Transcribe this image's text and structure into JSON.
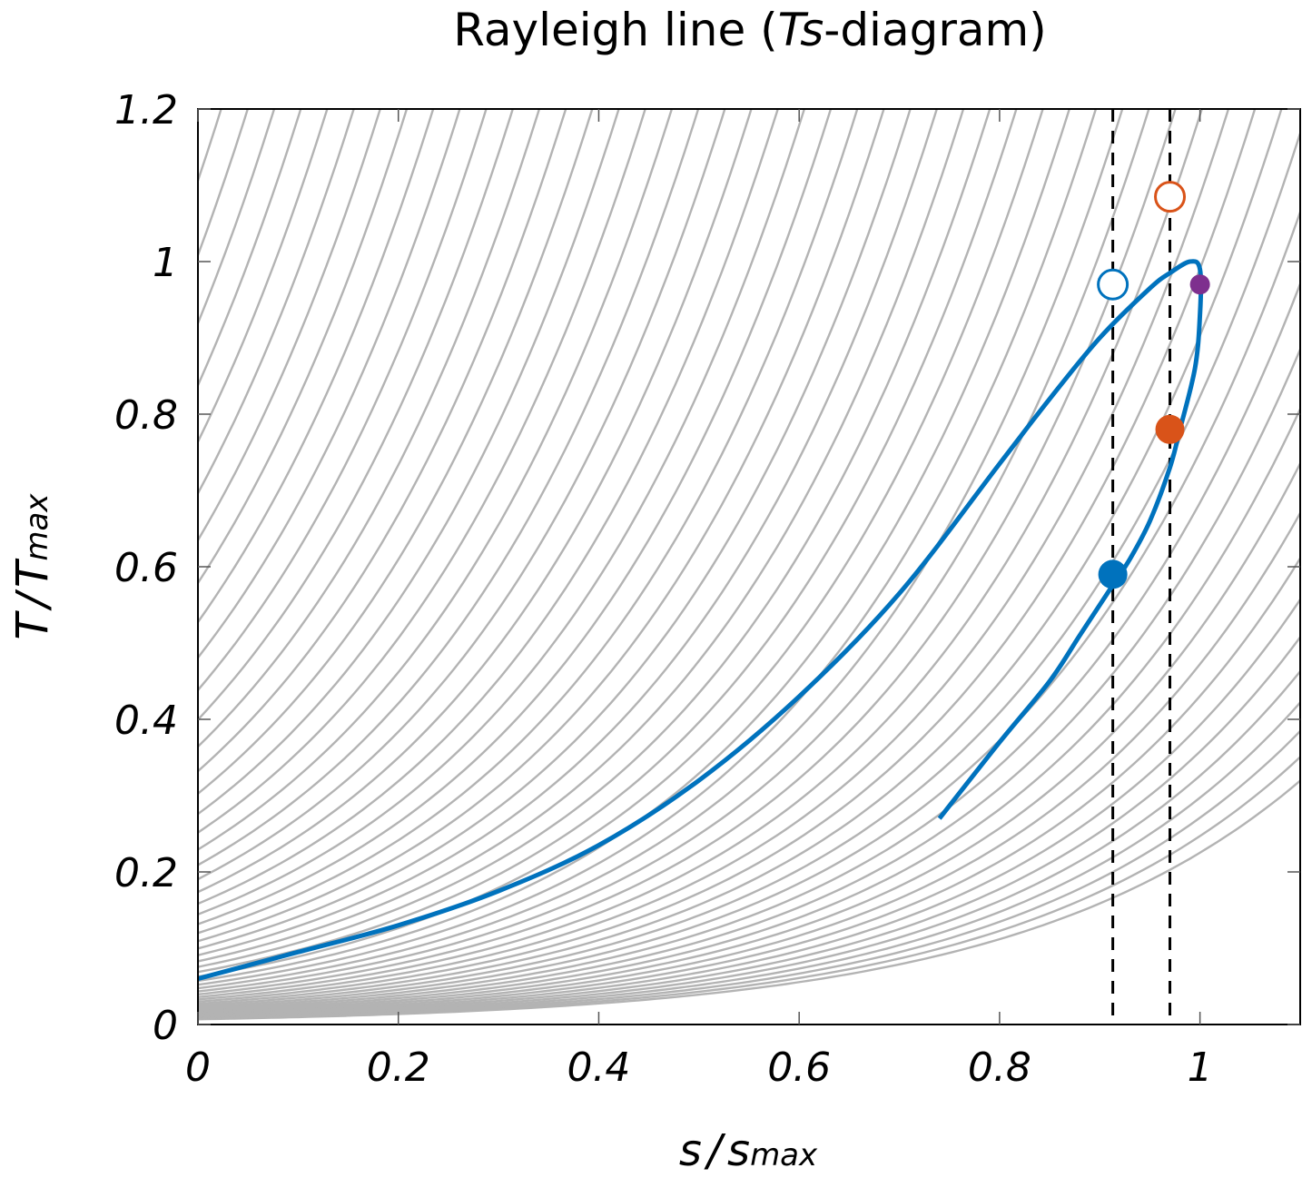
{
  "chart_data": {
    "type": "line",
    "title": {
      "prefix": "Rayleigh line (",
      "italic": "Ts",
      "suffix": "-diagram)"
    },
    "xlabel": {
      "main": "s",
      "sep": "/",
      "main2": "s",
      "sub": "max"
    },
    "ylabel": {
      "main": "T",
      "sep": "/",
      "main2": "T",
      "sub": "max"
    },
    "xlim": [
      0,
      1.1
    ],
    "ylim": [
      0,
      1.2
    ],
    "xticks": [
      0,
      0.2,
      0.4,
      0.6,
      0.8,
      1
    ],
    "xtick_labels": [
      "0",
      "0.2",
      "0.4",
      "0.6",
      "0.8",
      "1"
    ],
    "yticks": [
      0,
      0.2,
      0.4,
      0.6,
      0.8,
      1,
      1.2
    ],
    "ytick_labels": [
      "0",
      "0.2",
      "0.4",
      "0.6",
      "0.8",
      "1",
      "1.2"
    ],
    "grid": false,
    "legend": "none",
    "colors": {
      "rayleigh": "#0072bd",
      "isobars": "#b3b3b3",
      "point_blue": "#0072bd",
      "point_orange": "#d95319",
      "point_purple": "#7e2f8e",
      "dashed": "#000000"
    },
    "isobars": {
      "family": "exponential",
      "description_note": "",
      "count": 95,
      "c_scale": 0.0068,
      "c_growth": 1.097,
      "k": 3.5
    },
    "rayleigh_line": {
      "x": [
        0,
        0.1,
        0.2,
        0.3,
        0.4,
        0.5,
        0.6,
        0.7,
        0.8,
        0.85,
        0.9,
        0.95,
        0.97,
        0.99,
        1.0,
        1.0,
        0.995,
        0.98,
        0.97,
        0.95,
        0.93,
        0.91,
        0.88,
        0.85,
        0.8,
        0.74
      ],
      "y": [
        0.06,
        0.095,
        0.13,
        0.175,
        0.235,
        0.32,
        0.43,
        0.565,
        0.735,
        0.82,
        0.9,
        0.965,
        0.985,
        1.0,
        0.99,
        0.93,
        0.86,
        0.78,
        0.73,
        0.66,
        0.61,
        0.57,
        0.51,
        0.45,
        0.37,
        0.27
      ]
    },
    "vertical_lines": [
      {
        "x": 0.913,
        "style": "dashed"
      },
      {
        "x": 0.97,
        "style": "dashed"
      }
    ],
    "points": [
      {
        "x": 0.913,
        "y": 0.59,
        "filled": true,
        "color": "#0072bd",
        "size": "large"
      },
      {
        "x": 0.97,
        "y": 0.78,
        "filled": true,
        "color": "#d95319",
        "size": "large"
      },
      {
        "x": 1.0,
        "y": 0.97,
        "filled": true,
        "color": "#7e2f8e",
        "size": "small"
      },
      {
        "x": 0.913,
        "y": 0.97,
        "filled": false,
        "color": "#0072bd",
        "size": "large"
      },
      {
        "x": 0.97,
        "y": 1.085,
        "filled": false,
        "color": "#d95319",
        "size": "large"
      }
    ]
  }
}
